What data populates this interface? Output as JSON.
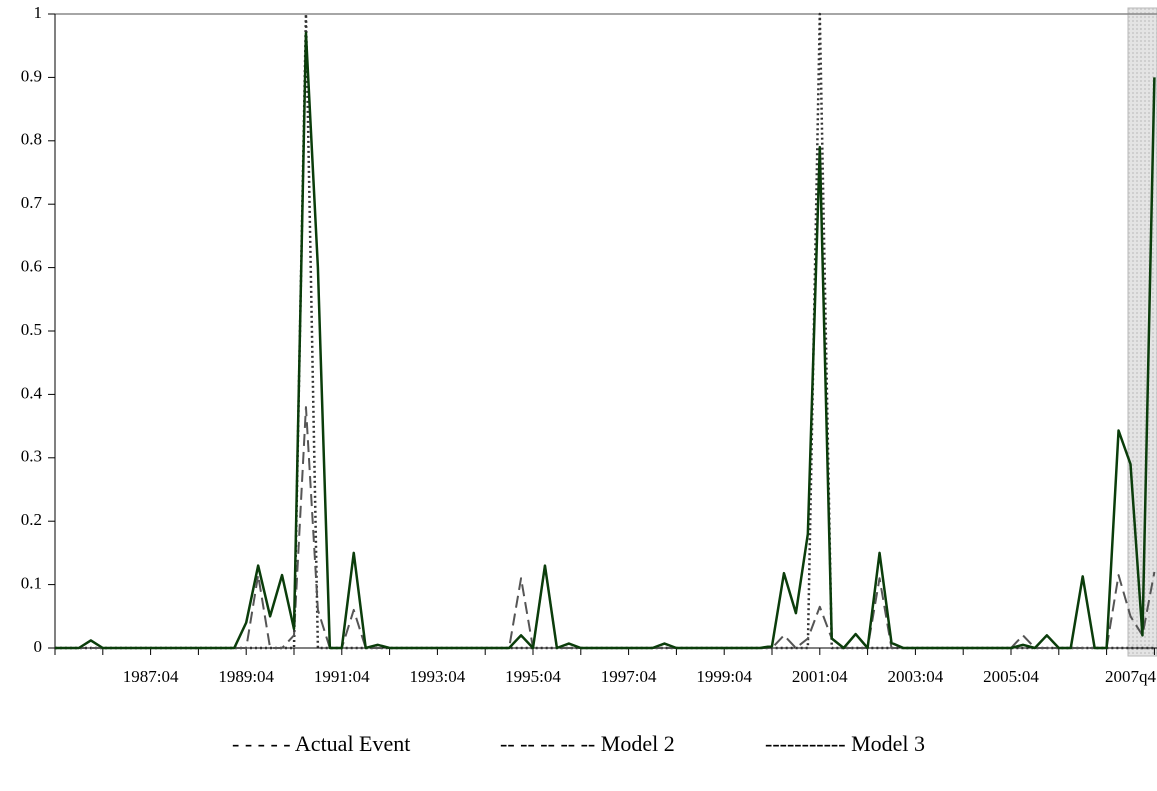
{
  "chart_data": {
    "type": "line",
    "categories": [
      null,
      null,
      null,
      null,
      null,
      null,
      null,
      null,
      "1987:04",
      null,
      null,
      null,
      null,
      null,
      null,
      null,
      "1989:04",
      null,
      null,
      null,
      null,
      null,
      null,
      null,
      "1991:04",
      null,
      null,
      null,
      null,
      null,
      null,
      null,
      "1993:04",
      null,
      null,
      null,
      null,
      null,
      null,
      null,
      "1995:04",
      null,
      null,
      null,
      null,
      null,
      null,
      null,
      "1997:04",
      null,
      null,
      null,
      null,
      null,
      null,
      null,
      "1999:04",
      null,
      null,
      null,
      null,
      null,
      null,
      null,
      "2001:04",
      null,
      null,
      null,
      null,
      null,
      null,
      null,
      "2003:04",
      null,
      null,
      null,
      null,
      null,
      null,
      null,
      "2005:04",
      null,
      null,
      null,
      null,
      null,
      null,
      null,
      null,
      null,
      "2007q4",
      null,
      null
    ],
    "series": [
      {
        "name": "- - - - - Actual Event",
        "color": "#333333",
        "dash": "2,3",
        "width": 2.5,
        "values": [
          0,
          0,
          0,
          0,
          0,
          0,
          0,
          0,
          0,
          0,
          0,
          0,
          0,
          0,
          0,
          0,
          0,
          0,
          0,
          0,
          0,
          1,
          0,
          0,
          0,
          0,
          0,
          0,
          0,
          0,
          0,
          0,
          0,
          0,
          0,
          0,
          0,
          0,
          0,
          0,
          0,
          0,
          0,
          0,
          0,
          0,
          0,
          0,
          0,
          0,
          0,
          0,
          0,
          0,
          0,
          0,
          0,
          0,
          0,
          0,
          0,
          0,
          0,
          0,
          1,
          0,
          0,
          0,
          0,
          0,
          0,
          0,
          0,
          0,
          0,
          0,
          0,
          0,
          0,
          0,
          0,
          0,
          0,
          0,
          0,
          0,
          0,
          0,
          0,
          0,
          0,
          0,
          0
        ]
      },
      {
        "name": "-- -- -- -- -- Model 2",
        "color": "#555555",
        "dash": "12,6",
        "width": 2,
        "values": [
          0,
          0,
          0,
          0,
          0,
          0,
          0,
          0,
          0,
          0,
          0,
          0,
          0,
          0,
          0,
          0,
          0,
          0.115,
          0,
          0,
          0.02,
          0.38,
          0.06,
          0,
          0,
          0.06,
          0,
          0,
          0,
          0,
          0,
          0,
          0,
          0,
          0,
          0,
          0,
          0,
          0,
          0.11,
          0,
          0.13,
          0,
          0,
          0,
          0,
          0,
          0,
          0,
          0,
          0,
          0,
          0,
          0,
          0,
          0,
          0,
          0,
          0,
          0,
          0,
          0.02,
          0,
          0.015,
          0.065,
          0.015,
          0,
          0,
          0,
          0.11,
          0,
          0,
          0,
          0,
          0,
          0,
          0,
          0,
          0,
          0,
          0,
          0.02,
          0,
          0,
          0,
          0,
          0,
          0,
          0,
          0.115,
          0.05,
          0.02,
          0.12
        ]
      },
      {
        "name": "----------- Model 3",
        "color": "#0b3d0b",
        "dash": "none",
        "width": 2.5,
        "values": [
          0,
          0,
          0,
          0.012,
          0,
          0,
          0,
          0,
          0,
          0,
          0,
          0,
          0,
          0,
          0,
          0,
          0.04,
          0.13,
          0.05,
          0.115,
          0.03,
          0.97,
          0.6,
          0,
          0,
          0.15,
          0,
          0.005,
          0,
          0,
          0,
          0,
          0,
          0,
          0,
          0,
          0,
          0,
          0,
          0.02,
          0,
          0.13,
          0,
          0.007,
          0,
          0,
          0,
          0,
          0,
          0,
          0,
          0.007,
          0,
          0,
          0,
          0,
          0,
          0,
          0,
          0,
          0.003,
          0.118,
          0.055,
          0.18,
          0.79,
          0.015,
          0,
          0.022,
          0,
          0.15,
          0.008,
          0,
          0,
          0,
          0,
          0,
          0,
          0,
          0,
          0,
          0,
          0.005,
          0,
          0.02,
          0,
          0,
          0.113,
          0,
          0,
          0.343,
          0.29,
          0.02,
          0.9
        ]
      }
    ],
    "ylim": [
      0,
      1
    ],
    "yticks": [
      0,
      0.1,
      0.2,
      0.3,
      0.4,
      0.5,
      0.6,
      0.7,
      0.8,
      0.9,
      1
    ],
    "grid": false
  }
}
